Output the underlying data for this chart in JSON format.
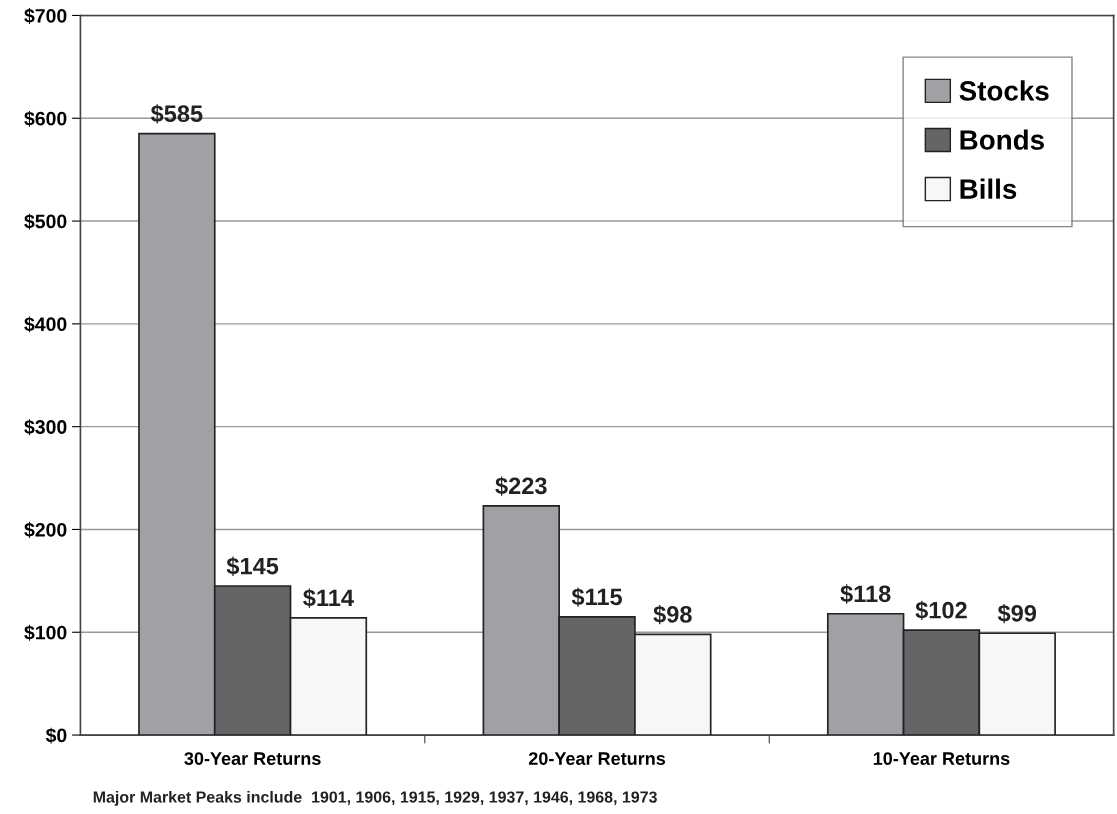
{
  "chart_data": {
    "type": "bar",
    "categories": [
      "30-Year Returns",
      "20-Year Returns",
      "10-Year Returns"
    ],
    "series": [
      {
        "name": "Stocks",
        "color": "#a0a1a5",
        "values": [
          585,
          223,
          118
        ],
        "value_labels": [
          "$585",
          "$223",
          "$118"
        ]
      },
      {
        "name": "Bonds",
        "color": "#646567",
        "values": [
          145,
          115,
          102
        ],
        "value_labels": [
          "$145",
          "$115",
          "$102"
        ]
      },
      {
        "name": "Bills",
        "color": "#f7f7f7",
        "values": [
          114,
          98,
          99
        ],
        "value_labels": [
          "$114",
          "$98",
          "$99"
        ]
      }
    ],
    "ylim": [
      0,
      700
    ],
    "yticks": [
      {
        "value": 0,
        "label": "$0"
      },
      {
        "value": 100,
        "label": "$100"
      },
      {
        "value": 200,
        "label": "$200"
      },
      {
        "value": 300,
        "label": "$300"
      },
      {
        "value": 400,
        "label": "$400"
      },
      {
        "value": 500,
        "label": "$500"
      },
      {
        "value": 600,
        "label": "$600"
      },
      {
        "value": 700,
        "label": "$700"
      }
    ],
    "grid": "y",
    "legend": "top right",
    "annotations": [
      "Major Market Peaks include  1901, 1906, 1915, 1929, 1937, 1946, 1968, 1973"
    ]
  }
}
